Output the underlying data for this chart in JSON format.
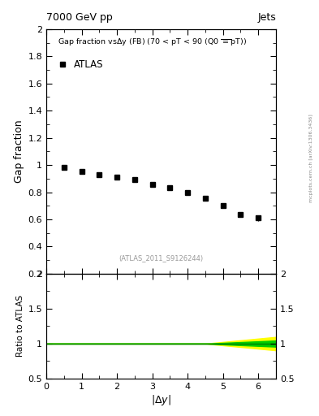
{
  "title_left": "7000 GeV pp",
  "title_right": "Jets",
  "annotation_sub": "(ATLAS_2011_S9126244)",
  "atlas_label": "ATLAS",
  "ylabel_main": "Gap fraction",
  "ylabel_ratio": "Ratio to ATLAS",
  "xlim": [
    0,
    6.5
  ],
  "ylim_main": [
    0.2,
    2.0
  ],
  "ylim_ratio": [
    0.5,
    2.0
  ],
  "data_x": [
    0.5,
    1.0,
    1.5,
    2.0,
    2.5,
    3.0,
    3.5,
    4.0,
    4.5,
    5.0,
    5.5,
    6.0
  ],
  "data_y": [
    0.985,
    0.955,
    0.93,
    0.91,
    0.89,
    0.855,
    0.835,
    0.8,
    0.755,
    0.7,
    0.635,
    0.61
  ],
  "data_yerr": [
    0.008,
    0.007,
    0.007,
    0.007,
    0.007,
    0.008,
    0.008,
    0.01,
    0.012,
    0.015,
    0.018,
    0.02
  ],
  "arxiv_text": "mcplots.cern.ch [arXiv:1306.3436]",
  "marker_color": "black",
  "marker_size": 5,
  "ratio_line_color": "#008000",
  "green_band_color": "#00cc00",
  "yellow_band_color": "#ffff00",
  "background_color": "white",
  "yticks_main": [
    0.2,
    0.4,
    0.6,
    0.8,
    1.0,
    1.2,
    1.4,
    1.6,
    1.8,
    2.0
  ],
  "yticks_ratio": [
    0.5,
    1.0,
    1.5,
    2.0
  ],
  "xticks": [
    0,
    1,
    2,
    3,
    4,
    5,
    6
  ]
}
